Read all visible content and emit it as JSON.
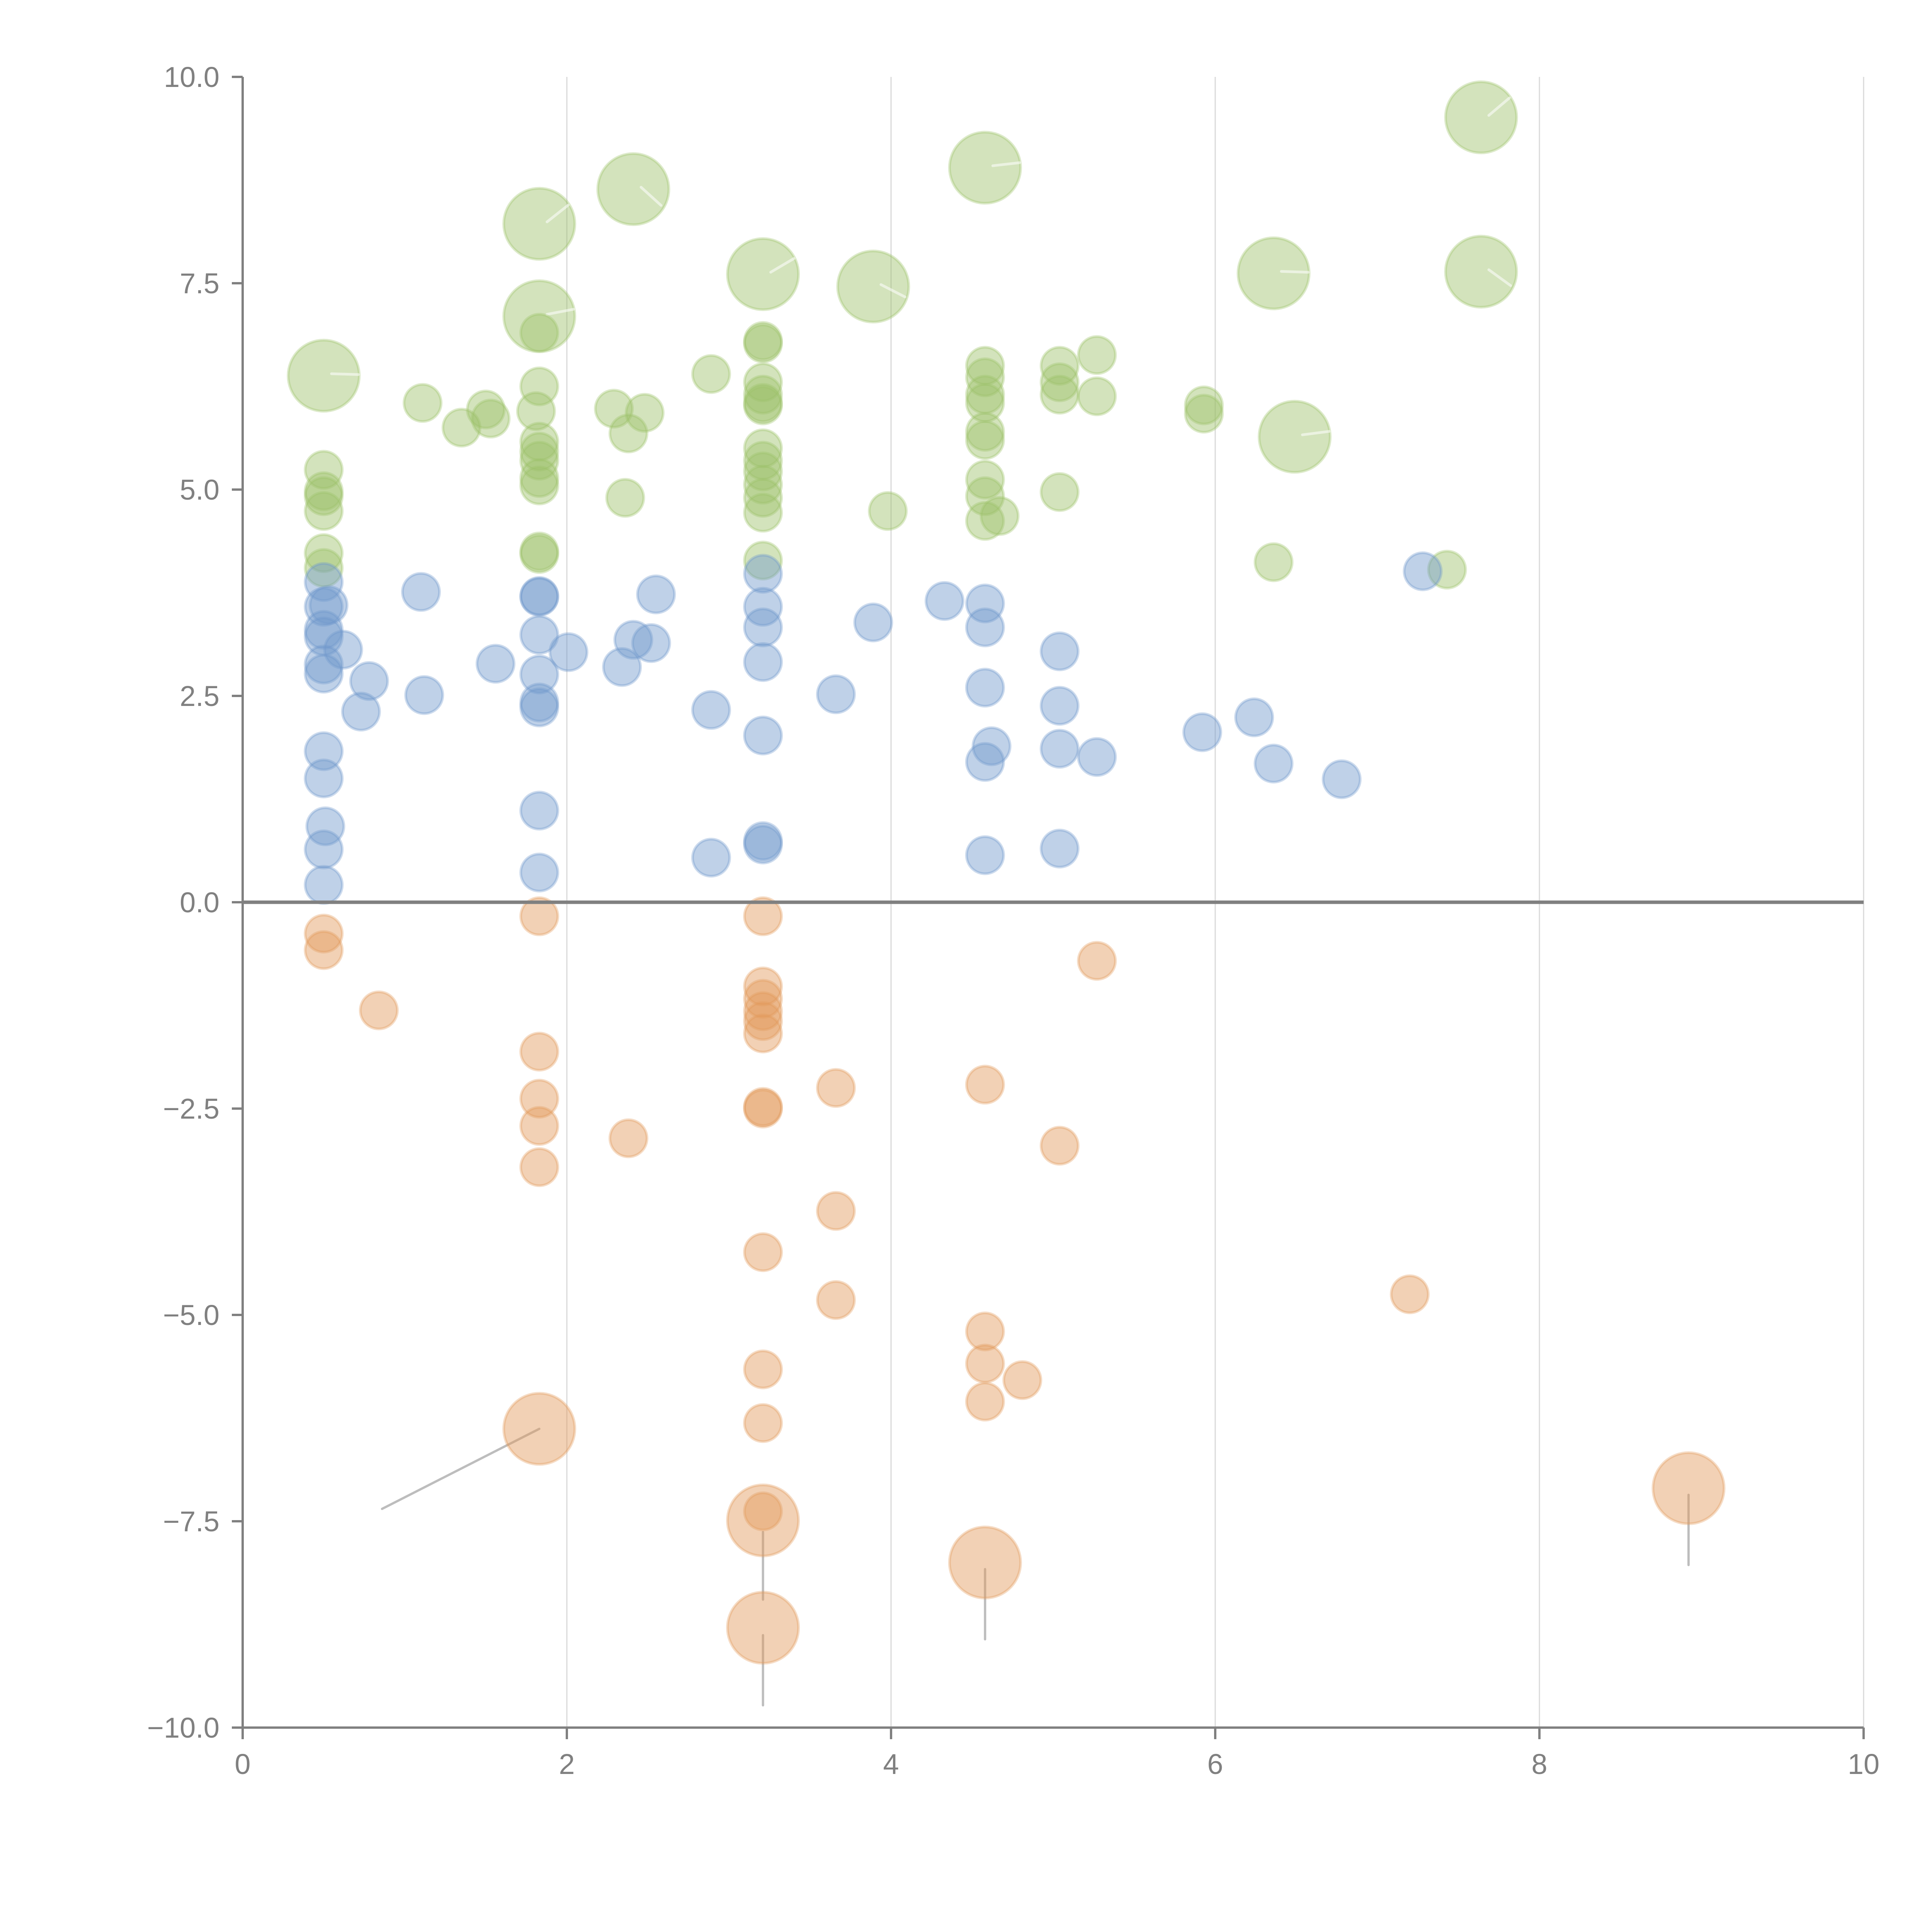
{
  "chart_data": {
    "type": "scatter",
    "title": "",
    "xlabel": "",
    "ylabel": "",
    "xlim": [
      0,
      10
    ],
    "ylim": [
      -10,
      10
    ],
    "x_ticks": [
      0,
      2,
      4,
      6,
      8,
      10
    ],
    "x_tick_labels": [
      "0",
      "2",
      "4",
      "6",
      "8",
      "10"
    ],
    "y_ticks": [
      10,
      7.5,
      5,
      2.5,
      0,
      -2.5,
      -5,
      -7.5,
      -10
    ],
    "y_tick_labels": [
      "10.0",
      "7.5",
      "5.0",
      "2.5",
      "0.0",
      "−2.5",
      "−5.0",
      "−7.5",
      "−10.0"
    ],
    "grid": "vertical",
    "legend": "none",
    "zero_line": true,
    "series": [
      {
        "name": "green",
        "color": "#9dc26a",
        "points": [
          {
            "x": 0.5,
            "y": 6.38,
            "size": "large"
          },
          {
            "x": 1.83,
            "y": 8.22,
            "size": "large"
          },
          {
            "x": 1.83,
            "y": 7.1,
            "size": "large"
          },
          {
            "x": 2.41,
            "y": 8.64,
            "size": "large"
          },
          {
            "x": 3.21,
            "y": 7.61,
            "size": "large"
          },
          {
            "x": 3.89,
            "y": 7.46,
            "size": "large"
          },
          {
            "x": 4.58,
            "y": 8.9,
            "size": "large"
          },
          {
            "x": 6.36,
            "y": 7.62,
            "size": "large"
          },
          {
            "x": 6.49,
            "y": 5.64,
            "size": "large"
          },
          {
            "x": 7.64,
            "y": 9.51,
            "size": "large"
          },
          {
            "x": 7.64,
            "y": 7.64,
            "size": "large"
          },
          {
            "x": 0.5,
            "y": 5.24
          },
          {
            "x": 0.5,
            "y": 4.98
          },
          {
            "x": 0.5,
            "y": 4.92
          },
          {
            "x": 0.5,
            "y": 4.74
          },
          {
            "x": 0.5,
            "y": 4.23
          },
          {
            "x": 0.5,
            "y": 4.05
          },
          {
            "x": 1.11,
            "y": 6.05
          },
          {
            "x": 1.35,
            "y": 5.75
          },
          {
            "x": 1.5,
            "y": 5.97
          },
          {
            "x": 1.53,
            "y": 5.86
          },
          {
            "x": 1.81,
            "y": 5.95
          },
          {
            "x": 1.83,
            "y": 6.25
          },
          {
            "x": 1.83,
            "y": 6.9
          },
          {
            "x": 1.83,
            "y": 5.58
          },
          {
            "x": 1.83,
            "y": 5.46
          },
          {
            "x": 1.83,
            "y": 5.35
          },
          {
            "x": 1.83,
            "y": 5.14
          },
          {
            "x": 1.83,
            "y": 5.05
          },
          {
            "x": 1.83,
            "y": 4.25
          },
          {
            "x": 1.83,
            "y": 4.22
          },
          {
            "x": 2.29,
            "y": 5.98
          },
          {
            "x": 2.38,
            "y": 5.68
          },
          {
            "x": 2.48,
            "y": 5.93
          },
          {
            "x": 2.36,
            "y": 4.9
          },
          {
            "x": 2.89,
            "y": 6.4
          },
          {
            "x": 3.21,
            "y": 6.8
          },
          {
            "x": 3.21,
            "y": 6.77
          },
          {
            "x": 3.21,
            "y": 6.3
          },
          {
            "x": 3.21,
            "y": 6.15
          },
          {
            "x": 3.21,
            "y": 6.05
          },
          {
            "x": 3.21,
            "y": 6.02
          },
          {
            "x": 3.21,
            "y": 5.5
          },
          {
            "x": 3.21,
            "y": 5.35
          },
          {
            "x": 3.21,
            "y": 5.22
          },
          {
            "x": 3.21,
            "y": 5.06
          },
          {
            "x": 3.21,
            "y": 4.9
          },
          {
            "x": 3.21,
            "y": 4.72
          },
          {
            "x": 3.21,
            "y": 4.14
          },
          {
            "x": 3.98,
            "y": 4.74
          },
          {
            "x": 4.58,
            "y": 6.5
          },
          {
            "x": 4.58,
            "y": 6.36
          },
          {
            "x": 4.58,
            "y": 6.15
          },
          {
            "x": 4.58,
            "y": 6.05
          },
          {
            "x": 4.58,
            "y": 5.7
          },
          {
            "x": 4.58,
            "y": 5.6
          },
          {
            "x": 4.58,
            "y": 5.12
          },
          {
            "x": 4.58,
            "y": 4.92
          },
          {
            "x": 4.58,
            "y": 4.62
          },
          {
            "x": 4.67,
            "y": 4.68
          },
          {
            "x": 5.04,
            "y": 6.5
          },
          {
            "x": 5.04,
            "y": 6.3
          },
          {
            "x": 5.04,
            "y": 6.15
          },
          {
            "x": 5.04,
            "y": 4.97
          },
          {
            "x": 5.27,
            "y": 6.63
          },
          {
            "x": 5.27,
            "y": 6.13
          },
          {
            "x": 5.93,
            "y": 6.02
          },
          {
            "x": 5.93,
            "y": 5.92
          },
          {
            "x": 6.36,
            "y": 4.12
          },
          {
            "x": 7.43,
            "y": 4.03
          }
        ]
      },
      {
        "name": "blue",
        "color": "#7098cc",
        "points": [
          {
            "x": 0.5,
            "y": 3.88
          },
          {
            "x": 0.5,
            "y": 3.58
          },
          {
            "x": 0.53,
            "y": 3.6
          },
          {
            "x": 0.5,
            "y": 3.3
          },
          {
            "x": 0.5,
            "y": 3.22
          },
          {
            "x": 0.62,
            "y": 3.06
          },
          {
            "x": 0.5,
            "y": 2.88
          },
          {
            "x": 0.5,
            "y": 2.77
          },
          {
            "x": 0.78,
            "y": 2.68
          },
          {
            "x": 0.73,
            "y": 2.31
          },
          {
            "x": 0.5,
            "y": 1.83
          },
          {
            "x": 0.5,
            "y": 1.5
          },
          {
            "x": 0.51,
            "y": 0.92
          },
          {
            "x": 0.5,
            "y": 0.64
          },
          {
            "x": 0.5,
            "y": 0.21
          },
          {
            "x": 1.1,
            "y": 3.76
          },
          {
            "x": 1.12,
            "y": 2.51
          },
          {
            "x": 1.56,
            "y": 2.89
          },
          {
            "x": 1.83,
            "y": 3.71
          },
          {
            "x": 1.83,
            "y": 3.7
          },
          {
            "x": 1.83,
            "y": 3.24
          },
          {
            "x": 1.83,
            "y": 2.76
          },
          {
            "x": 1.83,
            "y": 2.42
          },
          {
            "x": 1.83,
            "y": 2.36
          },
          {
            "x": 1.83,
            "y": 1.11
          },
          {
            "x": 1.83,
            "y": 0.36
          },
          {
            "x": 2.01,
            "y": 3.03
          },
          {
            "x": 2.34,
            "y": 2.85
          },
          {
            "x": 2.41,
            "y": 3.18
          },
          {
            "x": 2.52,
            "y": 3.14
          },
          {
            "x": 2.55,
            "y": 3.73
          },
          {
            "x": 2.89,
            "y": 2.33
          },
          {
            "x": 2.89,
            "y": 0.54
          },
          {
            "x": 3.21,
            "y": 3.98
          },
          {
            "x": 3.21,
            "y": 3.58
          },
          {
            "x": 3.21,
            "y": 3.33
          },
          {
            "x": 3.21,
            "y": 2.91
          },
          {
            "x": 3.21,
            "y": 2.02
          },
          {
            "x": 3.21,
            "y": 0.74
          },
          {
            "x": 3.21,
            "y": 0.7
          },
          {
            "x": 3.66,
            "y": 2.52
          },
          {
            "x": 3.89,
            "y": 3.39
          },
          {
            "x": 4.33,
            "y": 3.65
          },
          {
            "x": 4.58,
            "y": 3.62
          },
          {
            "x": 4.58,
            "y": 3.33
          },
          {
            "x": 4.58,
            "y": 2.6
          },
          {
            "x": 4.62,
            "y": 1.89
          },
          {
            "x": 4.58,
            "y": 1.7
          },
          {
            "x": 4.58,
            "y": 0.57
          },
          {
            "x": 5.04,
            "y": 3.04
          },
          {
            "x": 5.04,
            "y": 2.38
          },
          {
            "x": 5.04,
            "y": 1.86
          },
          {
            "x": 5.27,
            "y": 1.76
          },
          {
            "x": 5.04,
            "y": 0.65
          },
          {
            "x": 5.92,
            "y": 2.06
          },
          {
            "x": 6.24,
            "y": 2.24
          },
          {
            "x": 6.36,
            "y": 1.68
          },
          {
            "x": 6.78,
            "y": 1.49
          },
          {
            "x": 7.28,
            "y": 4.01
          }
        ]
      },
      {
        "name": "orange",
        "color": "#e39a5c",
        "points": [
          {
            "x": 1.83,
            "y": -6.38,
            "size": "large"
          },
          {
            "x": 3.21,
            "y": -7.49,
            "size": "large"
          },
          {
            "x": 3.21,
            "y": -8.79,
            "size": "large"
          },
          {
            "x": 4.58,
            "y": -8.0,
            "size": "large"
          },
          {
            "x": 8.92,
            "y": -7.1,
            "size": "large"
          },
          {
            "x": 0.5,
            "y": -0.38
          },
          {
            "x": 0.5,
            "y": -0.58
          },
          {
            "x": 0.84,
            "y": -1.31
          },
          {
            "x": 1.83,
            "y": -0.17
          },
          {
            "x": 1.83,
            "y": -1.81
          },
          {
            "x": 1.83,
            "y": -2.38
          },
          {
            "x": 1.83,
            "y": -2.71
          },
          {
            "x": 1.83,
            "y": -3.21
          },
          {
            "x": 2.38,
            "y": -2.86
          },
          {
            "x": 3.21,
            "y": -0.17
          },
          {
            "x": 3.21,
            "y": -1.02
          },
          {
            "x": 3.21,
            "y": -1.17
          },
          {
            "x": 3.21,
            "y": -1.32
          },
          {
            "x": 3.21,
            "y": -1.44
          },
          {
            "x": 3.21,
            "y": -1.59
          },
          {
            "x": 3.21,
            "y": -2.48
          },
          {
            "x": 3.21,
            "y": -2.5
          },
          {
            "x": 3.21,
            "y": -4.24
          },
          {
            "x": 3.21,
            "y": -5.66
          },
          {
            "x": 3.21,
            "y": -6.31
          },
          {
            "x": 3.21,
            "y": -7.38
          },
          {
            "x": 3.66,
            "y": -2.25
          },
          {
            "x": 3.66,
            "y": -3.74
          },
          {
            "x": 3.66,
            "y": -4.82
          },
          {
            "x": 4.58,
            "y": -2.21
          },
          {
            "x": 4.58,
            "y": -5.2
          },
          {
            "x": 4.58,
            "y": -5.59
          },
          {
            "x": 4.58,
            "y": -6.05
          },
          {
            "x": 4.81,
            "y": -5.79
          },
          {
            "x": 5.04,
            "y": -2.95
          },
          {
            "x": 5.27,
            "y": -0.71
          },
          {
            "x": 7.2,
            "y": -4.75
          }
        ]
      }
    ],
    "leader_lines": [
      {
        "from": [
          1.83,
          -6.38
        ],
        "to": [
          0.86,
          -7.35
        ]
      },
      {
        "from": [
          3.21,
          -7.63
        ],
        "to": [
          3.21,
          -8.45
        ]
      },
      {
        "from": [
          3.21,
          -8.88
        ],
        "to": [
          3.21,
          -9.73
        ]
      },
      {
        "from": [
          4.58,
          -8.08
        ],
        "to": [
          4.58,
          -8.93
        ]
      },
      {
        "from": [
          8.92,
          -7.18
        ],
        "to": [
          8.92,
          -8.03
        ]
      }
    ],
    "hidden_labels_note": "white point labels overlap bubbles and are not legible"
  }
}
